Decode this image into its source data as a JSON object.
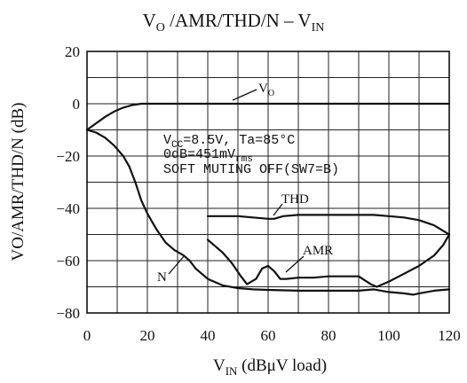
{
  "chart_data": {
    "type": "line",
    "title": {
      "main": "V",
      "sub": "O",
      "rest": " /AMR/THD/N  –  V",
      "sub2": "IN"
    },
    "xlabel": {
      "main": "V",
      "sub": "IN",
      "rest": "  (dBμV load)"
    },
    "ylabel": "VO/AMR/THD/N (dB)",
    "xlim": [
      0,
      120
    ],
    "ylim": [
      -80,
      20
    ],
    "xticks": [
      0,
      20,
      40,
      60,
      80,
      100,
      120
    ],
    "yticks": [
      20,
      0,
      -20,
      -40,
      -60,
      -80
    ],
    "grid": true,
    "annotations": {
      "line1": "V",
      "line1_sub": "CC",
      "line1_rest": "=8.5V, Ta=85°C",
      "line2": "0dB=451mV",
      "line2_sub": "rms",
      "line3": "SOFT MUTING OFF(SW7=B)"
    },
    "series": [
      {
        "name": "VO",
        "label_main": "V",
        "label_sub": "O",
        "x": [
          0,
          3,
          6,
          9,
          12,
          15,
          18,
          20,
          25,
          30,
          40,
          50,
          60,
          70,
          80,
          90,
          100,
          110,
          120
        ],
        "y": [
          -10,
          -7.5,
          -5,
          -3,
          -1.5,
          -0.5,
          0,
          0,
          0,
          0,
          0,
          0,
          0,
          0,
          0,
          0,
          0,
          0,
          0
        ]
      },
      {
        "name": "THD",
        "label": "THD",
        "x": [
          40,
          45,
          50,
          55,
          60,
          62,
          65,
          70,
          75,
          80,
          85,
          90,
          95,
          100,
          105,
          110,
          115,
          120
        ],
        "y": [
          -43,
          -43,
          -43,
          -43.5,
          -44,
          -44,
          -43,
          -42.5,
          -42.5,
          -42.5,
          -42.5,
          -42.5,
          -42.5,
          -43,
          -43.5,
          -44.5,
          -46.5,
          -50
        ]
      },
      {
        "name": "AMR",
        "label": "AMR",
        "x": [
          40,
          42,
          45,
          48,
          51,
          53,
          56,
          58,
          60,
          62,
          64,
          66,
          70,
          75,
          80,
          85,
          90,
          94,
          96,
          100,
          105,
          110,
          115,
          118,
          120
        ],
        "y": [
          -52,
          -54,
          -57,
          -61,
          -66,
          -69,
          -67,
          -63,
          -62,
          -64,
          -67,
          -67,
          -66.5,
          -66.5,
          -66,
          -66,
          -66,
          -69,
          -70,
          -68,
          -65,
          -62,
          -58,
          -54,
          -50
        ]
      },
      {
        "name": "N",
        "label": "N",
        "x": [
          0,
          3,
          6,
          9,
          12,
          14,
          16,
          18,
          20,
          23,
          26,
          29,
          32,
          34,
          36,
          40,
          45,
          50,
          55,
          60,
          70,
          80,
          90,
          95,
          100,
          105,
          108,
          110,
          115,
          120
        ],
        "y": [
          -10,
          -11,
          -13,
          -16,
          -20,
          -24,
          -30,
          -37,
          -42,
          -48,
          -53,
          -56,
          -58,
          -60,
          -63,
          -67,
          -69.5,
          -70.5,
          -71,
          -71.2,
          -71.5,
          -71.5,
          -71.5,
          -71,
          -72,
          -72.5,
          -73,
          -72.5,
          -71.5,
          -71
        ]
      }
    ]
  }
}
